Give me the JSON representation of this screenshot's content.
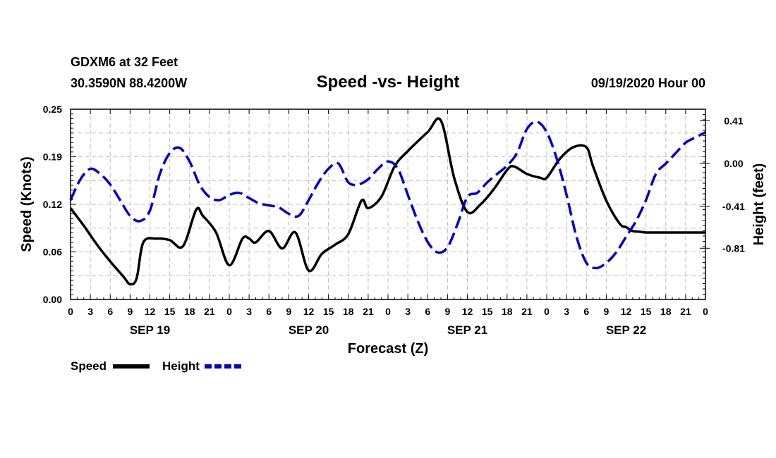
{
  "header": {
    "station": "GDXM6 at 32 Feet",
    "location": "30.3590N 88.4200W",
    "title": "Speed -vs- Height",
    "datetime": "09/19/2020 Hour 00"
  },
  "chart_data": {
    "type": "line",
    "title": "Speed -vs- Height",
    "xlabel": "Forecast (Z)",
    "ylabel_left": "Speed (Knots)",
    "ylabel_right": "Height (feet)",
    "x_range_hours": [
      0,
      96
    ],
    "y_left_range": [
      0.0,
      0.25
    ],
    "y_right_range": [
      -1.3,
      0.52
    ],
    "y_left_ticks": [
      "0.00",
      "0.06",
      "0.12",
      "0.19",
      "0.25"
    ],
    "y_left_tick_values": [
      0.0,
      0.0625,
      0.125,
      0.1875,
      0.25
    ],
    "y_right_ticks": [
      "0.41",
      "0.00",
      "-0.41",
      "-0.81"
    ],
    "y_right_tick_values": [
      0.41,
      0.0,
      -0.41,
      -0.81
    ],
    "x_tick_labels": [
      "0",
      "3",
      "6",
      "9",
      "12",
      "15",
      "18",
      "21",
      "0",
      "3",
      "6",
      "9",
      "12",
      "15",
      "18",
      "21",
      "0",
      "3",
      "6",
      "9",
      "12",
      "15",
      "18",
      "21",
      "0",
      "3",
      "6",
      "9",
      "12",
      "15",
      "18",
      "21",
      "0"
    ],
    "date_labels": [
      {
        "label": "SEP 19",
        "hour": 12
      },
      {
        "label": "SEP 20",
        "hour": 36
      },
      {
        "label": "SEP 21",
        "hour": 60
      },
      {
        "label": "SEP 22",
        "hour": 84
      }
    ],
    "grid": true,
    "legend_position": "bottom-left",
    "series": [
      {
        "name": "Speed",
        "axis": "left",
        "color": "#000000",
        "dash": "solid",
        "x": [
          0,
          2,
          4,
          6,
          8,
          9,
          10,
          11,
          13,
          15,
          17,
          19,
          20,
          22,
          24,
          26,
          27,
          28,
          30,
          32,
          34,
          36,
          38,
          40,
          42,
          44,
          45,
          47,
          49,
          51,
          54,
          56,
          58,
          60,
          62,
          64,
          66,
          67,
          69,
          71,
          72,
          74,
          76,
          78,
          79,
          81,
          83,
          84,
          85,
          86,
          87,
          89,
          91,
          93,
          95,
          96
        ],
        "values": [
          0.12,
          0.097,
          0.072,
          0.05,
          0.03,
          0.02,
          0.028,
          0.075,
          0.08,
          0.078,
          0.07,
          0.118,
          0.11,
          0.088,
          0.045,
          0.08,
          0.08,
          0.075,
          0.09,
          0.067,
          0.088,
          0.038,
          0.06,
          0.072,
          0.086,
          0.13,
          0.12,
          0.135,
          0.175,
          0.195,
          0.22,
          0.235,
          0.16,
          0.115,
          0.125,
          0.145,
          0.17,
          0.175,
          0.165,
          0.16,
          0.16,
          0.185,
          0.2,
          0.2,
          0.175,
          0.13,
          0.1,
          0.095,
          0.09,
          0.089,
          0.088,
          0.088,
          0.088,
          0.088,
          0.088,
          0.088
        ]
      },
      {
        "name": "Height",
        "axis": "right",
        "color": "#0000cc",
        "dash": "dashed",
        "x": [
          0,
          1.5,
          3,
          4.5,
          6,
          7.5,
          9,
          10.5,
          12,
          13.5,
          15,
          16.5,
          18,
          19.5,
          21,
          22.5,
          24,
          25.5,
          27,
          28.5,
          30,
          31.5,
          33,
          34.5,
          36,
          37.5,
          39,
          40.5,
          42,
          43.5,
          45,
          46.5,
          48,
          49.5,
          51,
          52.5,
          54,
          55.5,
          57,
          58.5,
          60,
          61.5,
          63,
          64.5,
          66,
          67.5,
          69,
          70.5,
          72,
          73.5,
          75,
          76.5,
          78,
          79.5,
          81,
          82.5,
          84,
          85.5,
          87,
          88.5,
          90,
          91.5,
          93,
          94.5,
          96
        ],
        "values": [
          -0.35,
          -0.15,
          -0.05,
          -0.1,
          -0.2,
          -0.35,
          -0.5,
          -0.55,
          -0.45,
          -0.1,
          0.1,
          0.15,
          0.02,
          -0.2,
          -0.32,
          -0.35,
          -0.3,
          -0.28,
          -0.33,
          -0.38,
          -0.4,
          -0.42,
          -0.48,
          -0.5,
          -0.35,
          -0.18,
          -0.05,
          0.0,
          -0.18,
          -0.2,
          -0.15,
          -0.05,
          0.02,
          -0.05,
          -0.3,
          -0.55,
          -0.75,
          -0.85,
          -0.8,
          -0.58,
          -0.32,
          -0.28,
          -0.18,
          -0.1,
          -0.02,
          0.1,
          0.33,
          0.4,
          0.3,
          0.05,
          -0.3,
          -0.7,
          -0.95,
          -1.0,
          -0.95,
          -0.85,
          -0.7,
          -0.55,
          -0.35,
          -0.1,
          0.0,
          0.1,
          0.2,
          0.25,
          0.3
        ]
      }
    ]
  },
  "legend": {
    "speed_label": "Speed",
    "height_label": "Height"
  }
}
